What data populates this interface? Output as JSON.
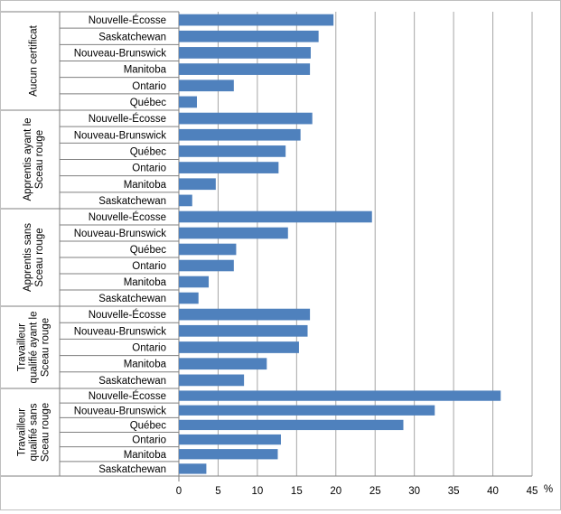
{
  "chart_data": {
    "type": "bar",
    "orientation": "horizontal",
    "xlabel": "%",
    "xlim": [
      0,
      45
    ],
    "xticks": [
      0,
      5,
      10,
      15,
      20,
      25,
      30,
      35,
      40,
      45
    ],
    "grid": true,
    "bar_color": "#4f81bd",
    "groups": [
      {
        "name": "Aucun certificat",
        "categories": [
          "Nouvelle-Écosse",
          "Saskatchewan",
          "Nouveau-Brunswick",
          "Manitoba",
          "Ontario",
          "Québec"
        ],
        "values": [
          19.7,
          17.8,
          16.8,
          16.7,
          7.0,
          2.3
        ]
      },
      {
        "name": "Apprentis ayant le Sceau rouge",
        "categories": [
          "Nouvelle-Écosse",
          "Nouveau-Brunswick",
          "Québec",
          "Ontario",
          "Manitoba",
          "Saskatchewan"
        ],
        "values": [
          17.0,
          15.5,
          13.6,
          12.7,
          4.7,
          1.7
        ]
      },
      {
        "name": "Apprentis sans Sceau rouge",
        "categories": [
          "Nouvelle-Écosse",
          "Nouveau-Brunswick",
          "Québec",
          "Ontario",
          "Manitoba",
          "Saskatchewan"
        ],
        "values": [
          24.6,
          13.9,
          7.3,
          7.0,
          3.8,
          2.5
        ]
      },
      {
        "name": "Travailleur qualifié ayant le Sceau rouge",
        "categories": [
          "Nouvelle-Écosse",
          "Nouveau-Brunswick",
          "Ontario",
          "Manitoba",
          "Saskatchewan"
        ],
        "values": [
          16.7,
          16.4,
          15.3,
          11.2,
          8.3
        ]
      },
      {
        "name": "Travailleur qualifié sans Sceau rouge",
        "categories": [
          "Nouvelle-Écosse",
          "Nouveau-Brunswick",
          "Québec",
          "Ontario",
          "Manitoba",
          "Saskatchewan"
        ],
        "values": [
          41.0,
          32.6,
          28.6,
          13.0,
          12.6,
          3.5
        ]
      }
    ]
  }
}
